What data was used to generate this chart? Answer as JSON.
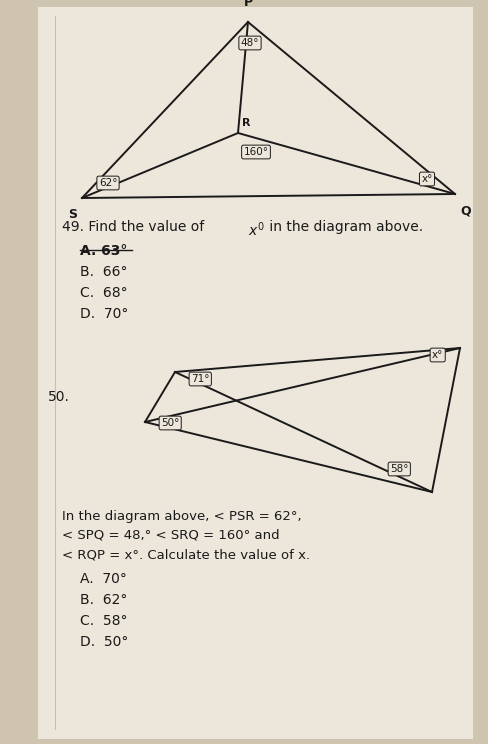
{
  "bg_color": "#cec4b0",
  "page_bg": "#ede7db",
  "diag1": {
    "angle_P": "48°",
    "angle_S": "62°",
    "angle_R": "160°",
    "angle_Q": "x°"
  },
  "diag2": {
    "angle_top_left": "71°",
    "angle_bottom_left": "50°",
    "angle_bottom_right": "58°",
    "angle_top_right": "x°"
  },
  "q49_prefix": "49. Find the value of ",
  "q49_var": "x",
  "q49_suffix": " in the diagram above.",
  "q49_choices": [
    "A. 63°",
    "B.  66°",
    "C.  68°",
    "D.  70°"
  ],
  "q50_label": "50.",
  "q50_line1": "In the diagram above, < PSR = 62°,",
  "q50_line2": "< SPQ = 48,° < SRQ = 160° and",
  "q50_line3": "< RQP = x°. Calculate the value of x.",
  "q50_choices": [
    "A.  70°",
    "B.  62°",
    "C.  58°",
    "D.  50°"
  ]
}
